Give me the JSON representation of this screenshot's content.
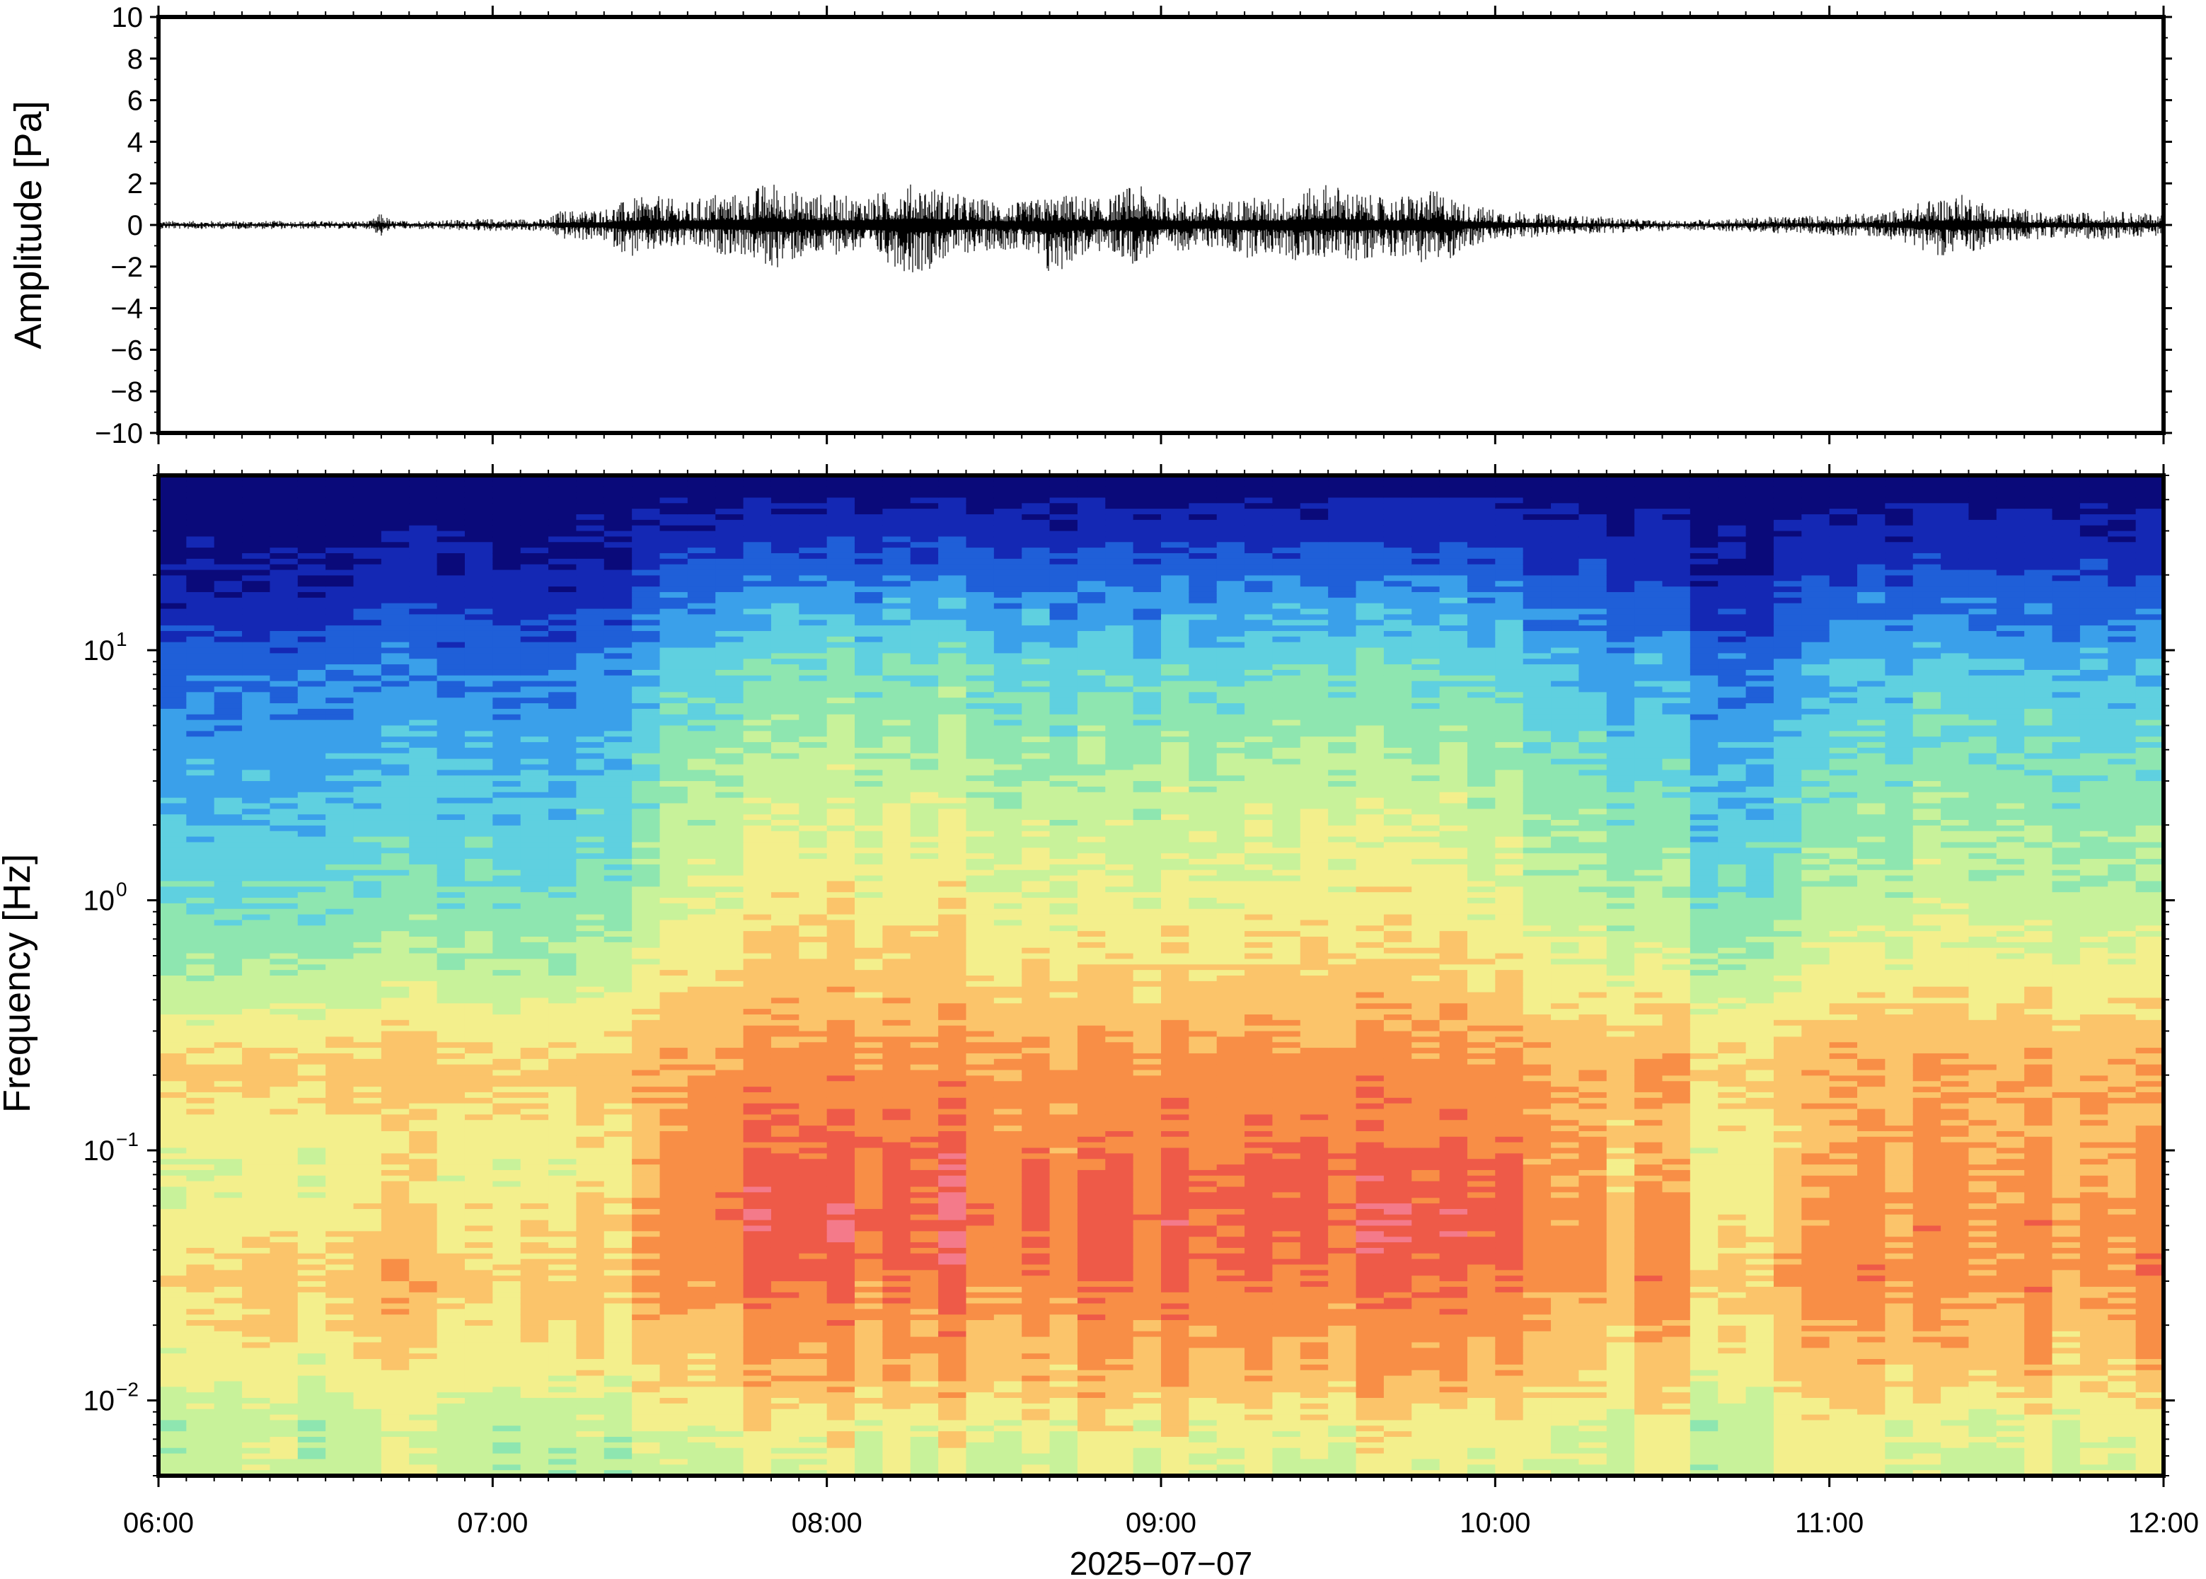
{
  "date_label": "2025−07−07",
  "chart_data": [
    {
      "type": "line",
      "panel": "waveform",
      "ylabel": "Amplitude [Pa]",
      "ylim": [
        -10,
        10
      ],
      "y_ticks": [
        "10",
        "8",
        "6",
        "4",
        "2",
        "0",
        "−2",
        "−4",
        "−6",
        "−8",
        "−10"
      ],
      "y_tick_values": [
        10,
        8,
        6,
        4,
        2,
        0,
        -2,
        -4,
        -6,
        -8,
        -10
      ],
      "xlim": [
        "06:00",
        "12:00"
      ],
      "line_color": "#000000",
      "envelope": {
        "x": [
          "06:00",
          "06:20",
          "06:38",
          "06:40",
          "06:42",
          "07:00",
          "07:10",
          "07:12",
          "07:20",
          "07:25",
          "07:30",
          "07:35",
          "07:40",
          "07:45",
          "07:50",
          "07:55",
          "08:00",
          "08:05",
          "08:10",
          "08:15",
          "08:18",
          "08:20",
          "08:25",
          "08:30",
          "08:35",
          "08:40",
          "08:45",
          "08:50",
          "08:55",
          "09:00",
          "09:05",
          "09:10",
          "09:15",
          "09:20",
          "09:25",
          "09:30",
          "09:35",
          "09:40",
          "09:45",
          "09:50",
          "09:55",
          "10:00",
          "10:10",
          "10:20",
          "10:30",
          "10:40",
          "10:50",
          "11:00",
          "11:10",
          "11:20",
          "11:25",
          "11:30",
          "11:35",
          "11:40",
          "11:45",
          "11:50",
          "12:00"
        ],
        "max": [
          0.2,
          0.2,
          0.2,
          0.6,
          0.2,
          0.3,
          0.3,
          0.7,
          0.8,
          1.3,
          1.4,
          1.1,
          1.6,
          1.5,
          2.2,
          1.6,
          1.5,
          1.4,
          1.6,
          2.0,
          2.0,
          1.8,
          1.4,
          1.2,
          1.1,
          1.4,
          1.5,
          1.2,
          2.0,
          1.5,
          1.2,
          1.1,
          1.4,
          1.3,
          1.6,
          2.1,
          1.6,
          1.3,
          1.5,
          1.7,
          1.0,
          0.8,
          0.5,
          0.4,
          0.2,
          0.3,
          0.4,
          0.5,
          0.6,
          1.4,
          1.5,
          0.9,
          0.8,
          0.5,
          0.6,
          0.7,
          0.5
        ],
        "min": [
          -0.2,
          -0.2,
          -0.2,
          -0.6,
          -0.2,
          -0.3,
          -0.3,
          -0.7,
          -0.8,
          -1.6,
          -1.3,
          -1.1,
          -1.4,
          -1.5,
          -2.2,
          -1.7,
          -1.5,
          -1.3,
          -1.7,
          -2.4,
          -2.2,
          -1.8,
          -1.4,
          -1.2,
          -1.2,
          -2.7,
          -1.6,
          -1.3,
          -1.9,
          -1.4,
          -1.2,
          -1.1,
          -1.6,
          -1.4,
          -1.9,
          -1.5,
          -1.8,
          -1.4,
          -1.7,
          -2.0,
          -1.1,
          -0.8,
          -0.5,
          -0.4,
          -0.3,
          -0.3,
          -0.4,
          -0.5,
          -0.6,
          -1.5,
          -1.4,
          -0.9,
          -0.8,
          -0.6,
          -0.7,
          -0.7,
          -0.5
        ]
      }
    },
    {
      "type": "heatmap",
      "panel": "spectrogram",
      "ylabel": "Frequency [Hz]",
      "yscale": "log",
      "ylim": [
        0.005,
        50
      ],
      "y_ticks": [
        {
          "base": "10",
          "exp": "−2",
          "value": 0.01
        },
        {
          "base": "10",
          "exp": "−1",
          "value": 0.1
        },
        {
          "base": "10",
          "exp": "0",
          "value": 1
        },
        {
          "base": "10",
          "exp": "1",
          "value": 10
        }
      ],
      "x_ticks": [
        "06:00",
        "07:00",
        "08:00",
        "09:00",
        "10:00",
        "11:00",
        "12:00"
      ],
      "xlim": [
        "06:00",
        "12:00"
      ],
      "colormap": [
        "#0a0a7a",
        "#1428b4",
        "#1f5fd8",
        "#3aa0ea",
        "#5fd0e0",
        "#8ee6b0",
        "#c8f29a",
        "#f3ef8c",
        "#fbc46a",
        "#f88e46",
        "#ee5a48",
        "#f47a8a"
      ],
      "level_scale": [
        0,
        11
      ],
      "time_knots": [
        "06:00",
        "06:10",
        "06:20",
        "06:30",
        "06:40",
        "06:50",
        "07:00",
        "07:10",
        "07:20",
        "07:25",
        "07:30",
        "07:40",
        "07:50",
        "08:00",
        "08:10",
        "08:20",
        "08:30",
        "08:40",
        "08:50",
        "09:00",
        "09:10",
        "09:20",
        "09:30",
        "09:40",
        "09:50",
        "10:00",
        "10:10",
        "10:20",
        "10:30",
        "10:40",
        "10:50",
        "11:00",
        "11:10",
        "11:20",
        "11:30",
        "11:40",
        "11:50",
        "12:00"
      ],
      "activity": [
        0.1,
        0.12,
        0.08,
        0.15,
        0.2,
        0.18,
        0.22,
        0.15,
        0.3,
        0.32,
        0.8,
        0.85,
        0.95,
        0.95,
        0.9,
        1.0,
        0.85,
        0.8,
        0.78,
        0.8,
        0.85,
        0.9,
        0.92,
        0.85,
        0.88,
        0.75,
        0.6,
        0.5,
        0.4,
        0.15,
        0.2,
        0.4,
        0.55,
        0.75,
        0.6,
        0.5,
        0.55,
        0.5
      ],
      "spectral_profile": {
        "freq_hz": [
          0.005,
          0.008,
          0.012,
          0.02,
          0.03,
          0.05,
          0.08,
          0.12,
          0.2,
          0.3,
          0.5,
          1,
          2,
          4,
          8,
          15,
          25,
          50
        ],
        "quiet_level": [
          6.2,
          6.0,
          6.8,
          7.4,
          7.8,
          7.0,
          6.4,
          6.8,
          7.6,
          7.0,
          5.5,
          4.2,
          3.4,
          2.8,
          2.0,
          0.8,
          0.2,
          0.0
        ],
        "active_level": [
          6.4,
          7.2,
          8.4,
          9.0,
          9.6,
          10.3,
          10.2,
          9.6,
          9.2,
          8.6,
          8.0,
          7.3,
          6.8,
          5.8,
          4.8,
          3.4,
          1.8,
          0.0
        ]
      }
    }
  ]
}
